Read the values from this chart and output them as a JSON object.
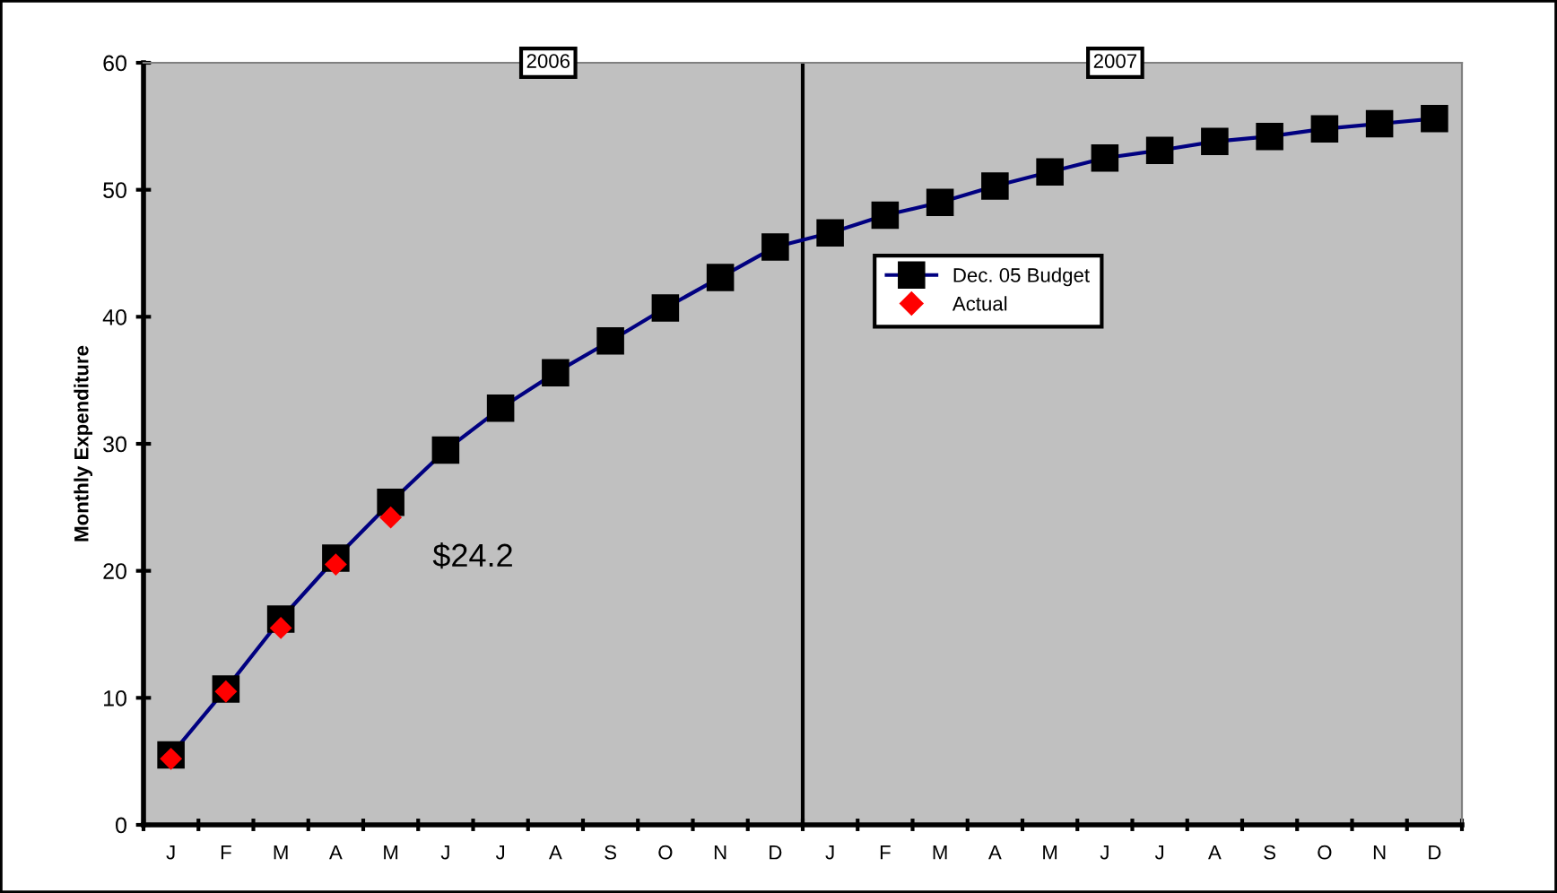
{
  "chart_data": {
    "type": "line",
    "ylabel": "Monthly Expenditure",
    "categories": [
      "J",
      "F",
      "M",
      "A",
      "M",
      "J",
      "J",
      "A",
      "S",
      "O",
      "N",
      "D",
      "J",
      "F",
      "M",
      "A",
      "M",
      "J",
      "J",
      "A",
      "S",
      "O",
      "N",
      "D"
    ],
    "series": [
      {
        "name": "Dec. 05 Budget",
        "color": "#000080",
        "marker": "square",
        "values": [
          5.5,
          10.7,
          16.2,
          21.0,
          25.4,
          29.5,
          32.8,
          35.6,
          38.1,
          40.7,
          43.1,
          45.5,
          46.6,
          48.0,
          49.0,
          50.3,
          51.4,
          52.5,
          53.1,
          53.8,
          54.2,
          54.8,
          55.2,
          55.6
        ]
      },
      {
        "name": "Actual",
        "type": "scatter",
        "color": "#ff0000",
        "marker": "diamond",
        "values": [
          5.2,
          10.5,
          15.5,
          20.5,
          24.2,
          null,
          null,
          null,
          null,
          null,
          null,
          null,
          null,
          null,
          null,
          null,
          null,
          null,
          null,
          null,
          null,
          null,
          null,
          null
        ]
      }
    ],
    "ylim": [
      0,
      60
    ],
    "yticks": [
      0,
      10,
      20,
      30,
      40,
      50,
      60
    ],
    "annotations": [
      "2006",
      "2007",
      "$24.2"
    ],
    "legend": "right",
    "grid": false
  }
}
